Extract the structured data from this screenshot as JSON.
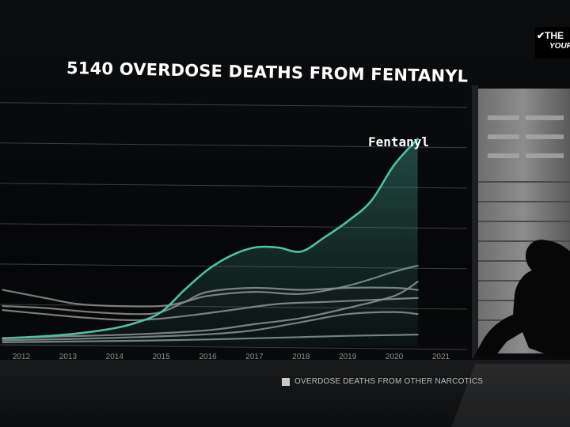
{
  "logo": {
    "line1": "✔THE",
    "line2": "YOUR"
  },
  "chart_data": {
    "type": "line",
    "title": "5140 OVERDOSE DEATHS FROM FENTANYL",
    "xlabel": "",
    "ylabel": "",
    "grid": true,
    "x_ticks": [
      "2012",
      "2013",
      "2014",
      "2015",
      "2016",
      "2017",
      "2018",
      "2019",
      "2020",
      "2021"
    ],
    "xlim": [
      2012,
      2021
    ],
    "ylim": [
      0,
      5800
    ],
    "highlight_label": "Fentanyl",
    "legend": {
      "label": "OVERDOSE DEATHS FROM OTHER NARCOTICS",
      "position": "bottom-right"
    },
    "colors": {
      "fentanyl": "#4fbfa6",
      "other": "#8a8a8a"
    },
    "fentanyl": {
      "x": [
        2011.6,
        2012.5,
        2013.2,
        2014,
        2014.5,
        2015,
        2015.5,
        2016,
        2016.5,
        2017,
        2017.5,
        2018,
        2018.5,
        2019,
        2019.5,
        2020,
        2020.5
      ],
      "y": [
        200,
        250,
        320,
        450,
        600,
        850,
        1400,
        1900,
        2250,
        2450,
        2450,
        2350,
        2700,
        3100,
        3600,
        4500,
        5140
      ]
    },
    "other_series": [
      {
        "x": [
          2011.6,
          2012.5,
          2013.2,
          2014,
          2015,
          2015.5,
          2016,
          2017,
          2018,
          2019,
          2020,
          2020.5
        ],
        "y": [
          1400,
          1200,
          1050,
          1000,
          1000,
          1100,
          1250,
          1350,
          1300,
          1500,
          1850,
          2000
        ]
      },
      {
        "x": [
          2011.6,
          2012.5,
          2013.5,
          2014.5,
          2015.5,
          2016.5,
          2017.5,
          2018.5,
          2019.5,
          2020.5
        ],
        "y": [
          900,
          800,
          700,
          650,
          750,
          900,
          1050,
          1100,
          1150,
          1200
        ]
      },
      {
        "x": [
          2011.6,
          2012.5,
          2013.5,
          2014.5,
          2015,
          2015.5,
          2016,
          2017,
          2018,
          2019,
          2020,
          2020.5
        ],
        "y": [
          1000,
          950,
          850,
          800,
          850,
          1100,
          1350,
          1450,
          1400,
          1450,
          1450,
          1400
        ]
      },
      {
        "x": [
          2011.6,
          2013,
          2014.5,
          2016,
          2017,
          2018,
          2019,
          2020,
          2020.5
        ],
        "y": [
          200,
          250,
          300,
          400,
          550,
          700,
          950,
          1250,
          1600
        ]
      },
      {
        "x": [
          2011.6,
          2013,
          2014.5,
          2016,
          2017,
          2018,
          2019,
          2020,
          2020.5
        ],
        "y": [
          150,
          180,
          230,
          300,
          400,
          600,
          800,
          850,
          800
        ]
      },
      {
        "x": [
          2011.6,
          2013,
          2014.5,
          2016,
          2017,
          2018,
          2019,
          2020,
          2020.5
        ],
        "y": [
          100,
          120,
          140,
          170,
          200,
          230,
          260,
          280,
          290
        ]
      }
    ]
  }
}
